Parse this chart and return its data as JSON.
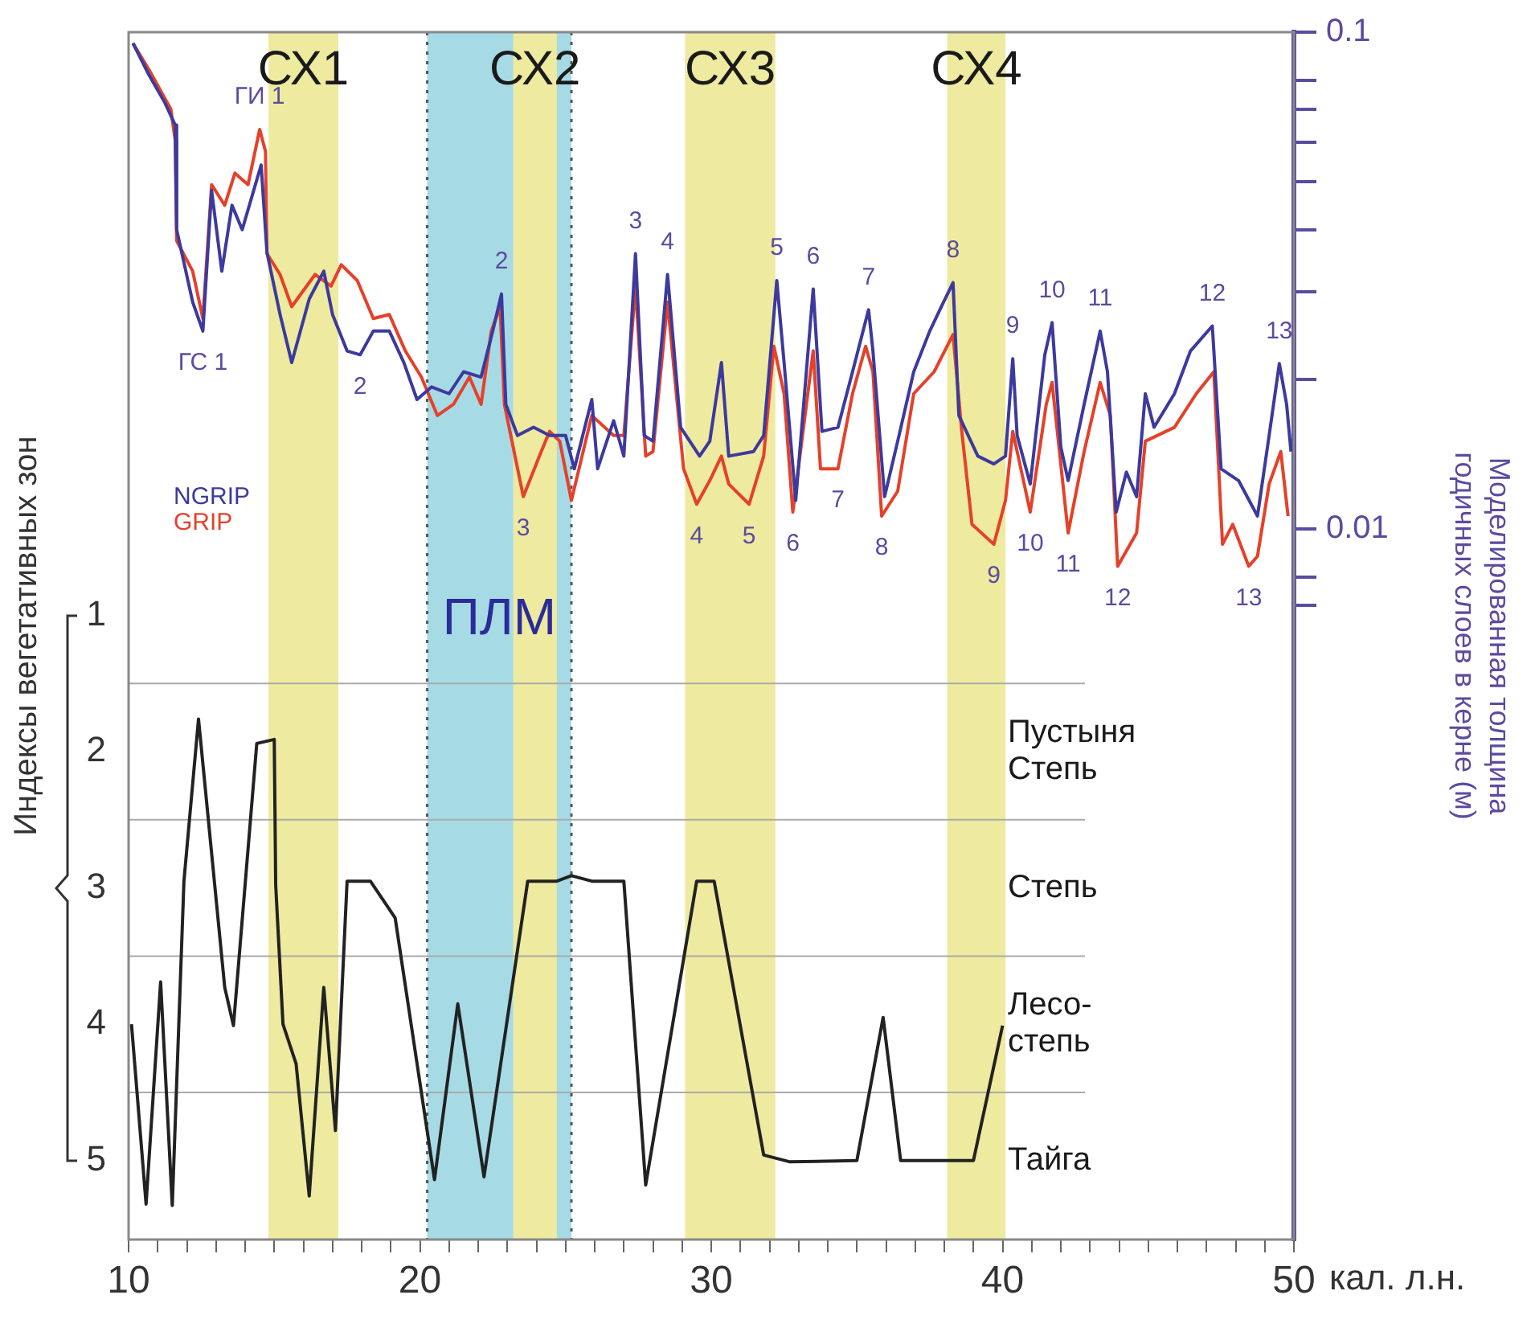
{
  "chart_data": {
    "type": "line",
    "xlabel": "кал. л.н.",
    "ylabel": "Моделированная толщина\nгодичных слоев в керне (м)",
    "y2label": "Индексы вегетативных зон",
    "log": "y",
    "marker": "none",
    "legend": "left",
    "xlim": [
      10,
      50
    ],
    "xticks": [
      10,
      {
        "value": 11,
        "label": null
      },
      {
        "value": 12,
        "label": null
      },
      {
        "value": 13,
        "label": null
      },
      {
        "value": 14,
        "label": null
      },
      {
        "value": 15,
        "label": null
      },
      {
        "value": 16,
        "label": null
      },
      {
        "value": 17,
        "label": null
      },
      {
        "value": 18,
        "label": null
      },
      {
        "value": 19,
        "label": null
      },
      20,
      {
        "value": 21,
        "label": null
      },
      {
        "value": 22,
        "label": null
      },
      {
        "value": 23,
        "label": null
      },
      {
        "value": 24,
        "label": null
      },
      {
        "value": 25,
        "label": null
      },
      {
        "value": 26,
        "label": null
      },
      {
        "value": 27,
        "label": null
      },
      {
        "value": 28,
        "label": null
      },
      {
        "value": 29,
        "label": null
      },
      30,
      {
        "value": 31,
        "label": null
      },
      {
        "value": 32,
        "label": null
      },
      {
        "value": 33,
        "label": null
      },
      {
        "value": 34,
        "label": null
      },
      {
        "value": 35,
        "label": null
      },
      {
        "value": 36,
        "label": null
      },
      {
        "value": 37,
        "label": null
      },
      {
        "value": 38,
        "label": null
      },
      {
        "value": 39,
        "label": null
      },
      40,
      {
        "value": 41,
        "label": null
      },
      {
        "value": 42,
        "label": null
      },
      {
        "value": 43,
        "label": null
      },
      {
        "value": 44,
        "label": null
      },
      {
        "value": 45,
        "label": null
      },
      {
        "value": 46,
        "label": null
      },
      {
        "value": 47,
        "label": null
      },
      {
        "value": 48,
        "label": null
      },
      {
        "value": 49,
        "label": null
      },
      50
    ],
    "ylim": [
      0.00037,
      0.1
    ],
    "yticks": [
      0.1,
      {
        "value": 0.08,
        "label": null
      },
      {
        "value": 0.07,
        "label": null
      },
      {
        "value": 0.06,
        "label": null
      },
      {
        "value": 0.05,
        "label": null
      },
      {
        "value": 0.04,
        "label": null
      },
      {
        "value": 0.03,
        "label": null
      },
      {
        "value": 0.02,
        "label": null
      },
      0.01,
      {
        "value": 0.008,
        "label": null
      },
      {
        "value": 0.007,
        "label": null
      }
    ],
    "y2lim": [
      5.58,
      -3.28
    ],
    "y2ticks": [
      1,
      2,
      3,
      4,
      5
    ],
    "series": [
      {
        "name": "NGRIP",
        "color": "#3c3a9e",
        "x": [
          10.15,
          10.7,
          11.25,
          11.6,
          11.65,
          12.2,
          12.55,
          12.85,
          13.2,
          13.55,
          13.9,
          14.55,
          14.75,
          15.2,
          15.6,
          16.2,
          16.7,
          17.0,
          17.5,
          17.95,
          18.4,
          18.95,
          19.45,
          19.9,
          20.4,
          21.0,
          21.5,
          22.1,
          22.5,
          22.8,
          22.95,
          23.35,
          23.9,
          24.45,
          25.0,
          25.3,
          25.9,
          26.1,
          26.65,
          27.0,
          27.4,
          27.7,
          28.0,
          28.5,
          28.95,
          29.6,
          29.95,
          30.35,
          30.6,
          31.45,
          31.8,
          32.25,
          32.5,
          32.9,
          33.5,
          33.8,
          34.35,
          34.85,
          35.4,
          35.55,
          35.95,
          36.4,
          36.95,
          37.5,
          37.9,
          38.3,
          38.5,
          39.15,
          39.7,
          40.1,
          40.35,
          40.5,
          40.95,
          41.45,
          41.7,
          42.0,
          42.25,
          42.8,
          43.35,
          43.6,
          43.9,
          44.25,
          44.6,
          44.9,
          45.2,
          45.9,
          46.45,
          47.2,
          47.5,
          48.1,
          48.75,
          49.15,
          49.5,
          49.75,
          49.9
        ],
        "values": [
          0.095,
          0.082,
          0.072,
          0.065,
          0.04,
          0.0286,
          0.025,
          0.048,
          0.033,
          0.0448,
          0.04,
          0.054,
          0.036,
          0.027,
          0.0216,
          0.029,
          0.033,
          0.027,
          0.0228,
          0.0224,
          0.025,
          0.025,
          0.0216,
          0.0182,
          0.0193,
          0.0187,
          0.0207,
          0.0202,
          0.025,
          0.0297,
          0.0178,
          0.0154,
          0.016,
          0.0154,
          0.0154,
          0.0132,
          0.0182,
          0.0132,
          0.0165,
          0.014,
          0.0358,
          0.0154,
          0.015,
          0.0325,
          0.016,
          0.014,
          0.015,
          0.0216,
          0.014,
          0.0143,
          0.0154,
          0.0316,
          0.0216,
          0.0114,
          0.0304,
          0.0157,
          0.016,
          0.0207,
          0.0276,
          0.0228,
          0.0116,
          0.015,
          0.0207,
          0.025,
          0.028,
          0.0313,
          0.0169,
          0.014,
          0.0135,
          0.014,
          0.022,
          0.0154,
          0.0123,
          0.0224,
          0.026,
          0.0146,
          0.0125,
          0.0178,
          0.025,
          0.0207,
          0.0108,
          0.013,
          0.0116,
          0.0187,
          0.016,
          0.0187,
          0.0228,
          0.0256,
          0.0132,
          0.0125,
          0.0106,
          0.0154,
          0.0215,
          0.0178,
          0.0143
        ]
      },
      {
        "name": "GRIP",
        "color": "#e5412a",
        "x": [
          10.15,
          10.7,
          11.45,
          11.6,
          11.65,
          12.2,
          12.55,
          12.85,
          13.3,
          13.65,
          14.1,
          14.5,
          14.7,
          14.75,
          15.2,
          15.6,
          16.4,
          16.95,
          17.3,
          17.85,
          18.4,
          18.95,
          19.5,
          20.05,
          20.6,
          21.15,
          21.7,
          22.1,
          22.45,
          22.75,
          22.9,
          23.2,
          23.55,
          24.1,
          24.45,
          24.8,
          25.2,
          25.9,
          26.65,
          27.0,
          27.4,
          27.75,
          28.0,
          28.5,
          29.05,
          29.5,
          29.95,
          30.35,
          30.6,
          31.3,
          31.8,
          32.15,
          32.5,
          32.8,
          33.5,
          33.75,
          34.35,
          34.85,
          35.3,
          35.55,
          35.85,
          36.4,
          36.95,
          37.65,
          38.3,
          38.6,
          38.95,
          39.7,
          40.1,
          40.35,
          40.95,
          41.5,
          41.7,
          42.25,
          42.8,
          43.35,
          43.7,
          43.95,
          44.6,
          44.9,
          45.9,
          46.65,
          47.25,
          47.55,
          47.9,
          48.45,
          48.75,
          49.15,
          49.55,
          49.8
        ],
        "values": [
          0.095,
          0.084,
          0.07,
          0.0605,
          0.038,
          0.033,
          0.0265,
          0.0493,
          0.0448,
          0.052,
          0.0493,
          0.0637,
          0.0575,
          0.0358,
          0.0325,
          0.028,
          0.0325,
          0.0308,
          0.034,
          0.0316,
          0.0265,
          0.027,
          0.0228,
          0.0202,
          0.0169,
          0.0178,
          0.0202,
          0.0178,
          0.025,
          0.028,
          0.0178,
          0.0146,
          0.0116,
          0.014,
          0.0157,
          0.015,
          0.0114,
          0.0169,
          0.0154,
          0.0154,
          0.0308,
          0.014,
          0.0143,
          0.0286,
          0.0132,
          0.0112,
          0.0125,
          0.014,
          0.0123,
          0.0112,
          0.014,
          0.0233,
          0.0187,
          0.0108,
          0.0228,
          0.0132,
          0.0132,
          0.0187,
          0.0233,
          0.0207,
          0.0106,
          0.0119,
          0.0187,
          0.0207,
          0.0246,
          0.0157,
          0.0102,
          0.0093,
          0.0114,
          0.0157,
          0.0108,
          0.0178,
          0.0197,
          0.0098,
          0.0143,
          0.0197,
          0.0169,
          0.0084,
          0.0098,
          0.015,
          0.016,
          0.0187,
          0.0207,
          0.0093,
          0.0102,
          0.0084,
          0.0088,
          0.0123,
          0.0143,
          0.0106
        ]
      },
      {
        "color": "#222222",
        "axis": "y2",
        "x": [
          10.1,
          10.6,
          11.1,
          11.5,
          11.9,
          12.4,
          13.3,
          13.6,
          14.4,
          15.0,
          15.05,
          15.3,
          15.75,
          16.2,
          16.7,
          17.1,
          17.5,
          18.3,
          19.15,
          20.5,
          21.3,
          22.2,
          23.7,
          24.7,
          25.2,
          25.9,
          27.0,
          27.75,
          29.5,
          30.1,
          31.8,
          32.7,
          35.0,
          35.9,
          36.5,
          39.0,
          40.0
        ],
        "values": [
          4.0,
          5.32,
          3.69,
          5.33,
          2.95,
          1.76,
          3.73,
          4.01,
          1.94,
          1.91,
          2.98,
          4.0,
          4.29,
          5.26,
          3.73,
          4.78,
          2.95,
          2.95,
          3.22,
          5.14,
          3.85,
          5.12,
          2.95,
          2.95,
          2.91,
          2.95,
          2.95,
          5.18,
          2.95,
          2.95,
          4.96,
          5.01,
          5.0,
          3.95,
          5.0,
          5.0,
          4.01
        ]
      }
    ],
    "bands": [
      {
        "axis": "x",
        "from": 20.25,
        "to": 25.2,
        "label": "ПЛМ",
        "color": "#a6dbe6"
      },
      {
        "axis": "x",
        "from": 14.8,
        "to": 17.2,
        "label": "СХ1",
        "color": "#eeea9f"
      },
      {
        "axis": "x",
        "from": 23.2,
        "to": 24.7,
        "label": "СХ2",
        "color": "#eeea9f"
      },
      {
        "axis": "x",
        "from": 29.1,
        "to": 32.2,
        "label": "СХ3",
        "color": "#eeea9f"
      },
      {
        "axis": "x",
        "from": 38.1,
        "to": 40.1,
        "label": "СХ4",
        "color": "#eeea9f"
      }
    ],
    "ref_lines": [
      {
        "axis": "x",
        "value": 20.25,
        "color": "#555555",
        "line_style": "dotted"
      },
      {
        "axis": "x",
        "value": 25.2,
        "color": "#555555",
        "line_style": "dotted"
      },
      {
        "axis": "y2",
        "value": 1.5,
        "label": "Пустыня\nСтепь",
        "color": "#aaaaaa"
      },
      {
        "axis": "y2",
        "value": 2.5,
        "label": "Степь",
        "color": "#aaaaaa"
      },
      {
        "axis": "y2",
        "value": 3.5,
        "label": "Лесо-\nстепь",
        "color": "#aaaaaa"
      },
      {
        "axis": "y2",
        "value": 4.5,
        "label": "Тайга",
        "color": "#aaaaaa"
      }
    ],
    "annotations": [
      {
        "text": "ГИ 1",
        "x": 14.5,
        "y": 0.0637
      },
      {
        "text": "ГС 1",
        "x": 12.55,
        "y": 0.025
      },
      {
        "text": "2",
        "x": 17.95,
        "y": 0.0224
      },
      {
        "text": "2",
        "x": 22.8,
        "y": 0.0297
      },
      {
        "text": "3",
        "x": 23.55,
        "y": 0.0116
      },
      {
        "text": "3",
        "x": 27.4,
        "y": 0.0358
      },
      {
        "text": "4",
        "x": 28.5,
        "y": 0.0325
      },
      {
        "text": "5",
        "x": 32.25,
        "y": 0.0316
      },
      {
        "text": "6",
        "x": 33.5,
        "y": 0.0304
      },
      {
        "text": "7",
        "x": 35.4,
        "y": 0.0276
      },
      {
        "text": "8",
        "x": 38.3,
        "y": 0.0313
      },
      {
        "text": "9",
        "x": 40.35,
        "y": 0.022
      },
      {
        "text": "10",
        "x": 41.7,
        "y": 0.026
      },
      {
        "text": "11",
        "x": 43.35,
        "y": 0.025
      },
      {
        "text": "12",
        "x": 47.2,
        "y": 0.0256
      },
      {
        "text": "13",
        "x": 49.5,
        "y": 0.0215
      },
      {
        "text": "4",
        "x": 29.5,
        "y": 0.0112
      },
      {
        "text": "5",
        "x": 31.3,
        "y": 0.0112
      },
      {
        "text": "6",
        "x": 32.8,
        "y": 0.0108
      },
      {
        "text": "7",
        "x": 34.35,
        "y": 0.0132
      },
      {
        "text": "8",
        "x": 35.85,
        "y": 0.0106
      },
      {
        "text": "9",
        "x": 39.7,
        "y": 0.0093
      },
      {
        "text": "10",
        "x": 40.95,
        "y": 0.0108
      },
      {
        "text": "11",
        "x": 42.25,
        "y": 0.0098
      },
      {
        "text": "12",
        "x": 43.95,
        "y": 0.0084
      },
      {
        "text": "13",
        "x": 48.45,
        "y": 0.0084
      }
    ]
  }
}
